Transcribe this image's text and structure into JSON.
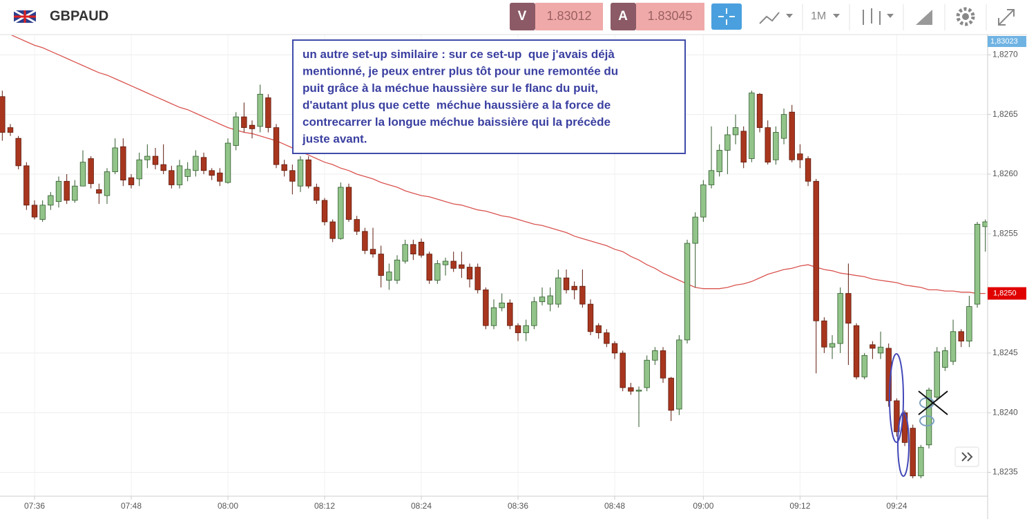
{
  "header": {
    "symbol": "GBPAUD",
    "sell_label": "V",
    "sell_price": "1.83012",
    "buy_label": "A",
    "buy_price": "1.83045",
    "timeframe": "1M"
  },
  "chart_data": {
    "type": "candlestick",
    "categories": [
      null,
      null,
      null,
      null,
      "07:36",
      null,
      null,
      null,
      null,
      null,
      null,
      null,
      null,
      null,
      null,
      null,
      "07:48",
      null,
      null,
      null,
      null,
      null,
      null,
      null,
      null,
      null,
      null,
      null,
      "08:00",
      null,
      null,
      null,
      null,
      null,
      null,
      null,
      null,
      null,
      null,
      null,
      "08:12",
      null,
      null,
      null,
      null,
      null,
      null,
      null,
      null,
      null,
      null,
      null,
      "08:24",
      null,
      null,
      null,
      null,
      null,
      null,
      null,
      null,
      null,
      null,
      null,
      "08:36",
      null,
      null,
      null,
      null,
      null,
      null,
      null,
      null,
      null,
      null,
      null,
      "08:48",
      null,
      null,
      null,
      null,
      null,
      null,
      null,
      null,
      null,
      null,
      "09:00",
      null,
      null,
      null,
      null,
      null,
      null,
      null,
      null,
      null,
      null,
      null,
      "09:12",
      null,
      null,
      null,
      null,
      null,
      null,
      null,
      null,
      null,
      null,
      null,
      "09:24",
      null,
      null,
      null,
      null,
      null,
      null,
      null,
      null,
      null,
      null,
      null
    ],
    "open": [
      1.82665,
      1.82639,
      1.8263,
      1.82607,
      1.82574,
      1.82562,
      1.82574,
      1.82577,
      1.82594,
      1.82578,
      1.8259,
      1.82613,
      1.82587,
      1.82582,
      1.82602,
      1.82623,
      1.82597,
      1.82596,
      1.82612,
      1.82615,
      1.82608,
      1.82603,
      1.82591,
      1.82598,
      1.82603,
      1.82614,
      1.82603,
      1.82601,
      1.82593,
      1.82624,
      1.82648,
      1.82641,
      1.8264,
      1.82664,
      1.82639,
      1.82608,
      1.82603,
      1.8259,
      1.82612,
      1.82589,
      1.82578,
      1.8256,
      1.82546,
      1.82589,
      1.82562,
      1.82552,
      1.82537,
      1.82533,
      1.82511,
      1.82511,
      1.82527,
      1.82541,
      1.82543,
      1.82533,
      1.82511,
      1.82524,
      1.82527,
      1.82524,
      1.82522,
      1.82522,
      1.82503,
      1.82473,
      1.82488,
      1.82492,
      1.82473,
      1.82467,
      1.82473,
      1.82493,
      1.82491,
      1.82491,
      1.82513,
      1.82506,
      1.82506,
      1.82491,
      1.82473,
      1.82467,
      1.82458,
      1.8245,
      1.82421,
      1.82418,
      1.82421,
      1.82444,
      1.82452,
      1.82429,
      1.82403,
      1.82461,
      1.82542,
      1.82564,
      1.82591,
      1.82602,
      1.8262,
      1.82633,
      1.82636,
      1.82613,
      1.82667,
      1.82639,
      1.82612,
      1.8263,
      1.82652,
      1.82617,
      1.82613,
      1.82594,
      1.82477,
      1.82455,
      1.82458,
      1.825,
      1.82473,
      1.8243,
      1.82457,
      1.8245,
      1.82454,
      1.8241,
      1.824,
      1.82387,
      1.82347,
      1.82373,
      1.82413,
      1.82438,
      1.82443,
      1.82468,
      1.8246,
      1.82491,
      1.82556
    ],
    "high": [
      1.8267,
      1.82642,
      1.82632,
      1.8261,
      1.82578,
      1.82578,
      1.82585,
      1.82598,
      1.826,
      1.82595,
      1.8262,
      1.82615,
      1.82592,
      1.82605,
      1.8263,
      1.8263,
      1.826,
      1.82618,
      1.82625,
      1.82622,
      1.82625,
      1.82607,
      1.82612,
      1.8261,
      1.8262,
      1.82618,
      1.82605,
      1.82605,
      1.8263,
      1.82652,
      1.8266,
      1.82645,
      1.82675,
      1.82667,
      1.82642,
      1.82612,
      1.82608,
      1.82615,
      1.82615,
      1.82592,
      1.8258,
      1.82562,
      1.82593,
      1.82592,
      1.82565,
      1.82555,
      1.82555,
      1.8254,
      1.82525,
      1.82532,
      1.82545,
      1.82545,
      1.82546,
      1.82535,
      1.82528,
      1.8253,
      1.82535,
      1.82535,
      1.82525,
      1.82525,
      1.82505,
      1.82495,
      1.825,
      1.82495,
      1.82475,
      1.82478,
      1.82497,
      1.82505,
      1.82505,
      1.8252,
      1.8252,
      1.8251,
      1.8252,
      1.82495,
      1.82475,
      1.8247,
      1.8246,
      1.82452,
      1.82425,
      1.82422,
      1.82448,
      1.82455,
      1.82455,
      1.8243,
      1.82465,
      1.82545,
      1.82568,
      1.82595,
      1.8264,
      1.82625,
      1.8264,
      1.8265,
      1.8264,
      1.8267,
      1.82668,
      1.82645,
      1.8264,
      1.82655,
      1.82658,
      1.82625,
      1.82615,
      1.82596,
      1.8248,
      1.82465,
      1.82505,
      1.82525,
      1.82475,
      1.8245,
      1.8246,
      1.82468,
      1.82458,
      1.82412,
      1.82402,
      1.8239,
      1.82373,
      1.82421,
      1.82455,
      1.82455,
      1.82478,
      1.8247,
      1.82498,
      1.8256,
      1.82562
    ],
    "low": [
      1.82628,
      1.82632,
      1.82604,
      1.8257,
      1.82562,
      1.8256,
      1.8257,
      1.82572,
      1.82575,
      1.82576,
      1.8259,
      1.82588,
      1.82575,
      1.82575,
      1.826,
      1.8259,
      1.82588,
      1.8259,
      1.82605,
      1.82604,
      1.826,
      1.82588,
      1.82588,
      1.82594,
      1.82598,
      1.826,
      1.82595,
      1.8259,
      1.82592,
      1.8262,
      1.82635,
      1.8263,
      1.82635,
      1.82635,
      1.82605,
      1.82598,
      1.82583,
      1.82585,
      1.82588,
      1.82575,
      1.82557,
      1.82543,
      1.82545,
      1.8256,
      1.82549,
      1.82533,
      1.8253,
      1.82505,
      1.82503,
      1.82508,
      1.82525,
      1.82528,
      1.8253,
      1.82508,
      1.82508,
      1.82515,
      1.82518,
      1.82513,
      1.82505,
      1.825,
      1.8247,
      1.8247,
      1.82485,
      1.8247,
      1.8246,
      1.8246,
      1.8247,
      1.8249,
      1.82485,
      1.82488,
      1.825,
      1.82495,
      1.82488,
      1.82465,
      1.82462,
      1.82455,
      1.82445,
      1.82418,
      1.82415,
      1.82388,
      1.82418,
      1.8244,
      1.82425,
      1.82393,
      1.82398,
      1.82458,
      1.82505,
      1.8256,
      1.82588,
      1.82598,
      1.826,
      1.82625,
      1.82605,
      1.8261,
      1.82635,
      1.82608,
      1.82608,
      1.82625,
      1.8261,
      1.82605,
      1.8259,
      1.82433,
      1.8245,
      1.82445,
      1.8245,
      1.8244,
      1.82428,
      1.82428,
      1.82445,
      1.82445,
      1.82405,
      1.8238,
      1.82372,
      1.82345,
      1.82345,
      1.8237,
      1.8241,
      1.82435,
      1.8244,
      1.82455,
      1.82455,
      1.82488,
      1.82535
    ],
    "close": [
      1.82635,
      1.82635,
      1.82607,
      1.82574,
      1.82564,
      1.82574,
      1.82582,
      1.82594,
      1.82578,
      1.8259,
      1.8261,
      1.82592,
      1.82584,
      1.82602,
      1.82622,
      1.82595,
      1.82591,
      1.82612,
      1.82615,
      1.82608,
      1.82603,
      1.82591,
      1.82607,
      1.82604,
      1.82615,
      1.82603,
      1.82599,
      1.82594,
      1.82626,
      1.82648,
      1.82639,
      1.82638,
      1.82667,
      1.82639,
      1.82608,
      1.82603,
      1.82594,
      1.82612,
      1.8259,
      1.82578,
      1.8256,
      1.82546,
      1.82589,
      1.82562,
      1.82552,
      1.82536,
      1.82533,
      1.82515,
      1.82518,
      1.82528,
      1.82541,
      1.82533,
      1.82532,
      1.82511,
      1.82525,
      1.82527,
      1.82521,
      1.82521,
      1.82512,
      1.82503,
      1.82473,
      1.82488,
      1.82492,
      1.82473,
      1.82467,
      1.82473,
      1.82493,
      1.82497,
      1.82498,
      1.82513,
      1.82503,
      1.82503,
      1.82491,
      1.82468,
      1.82467,
      1.82458,
      1.8245,
      1.82421,
      1.82418,
      1.82419,
      1.82444,
      1.82452,
      1.82429,
      1.82402,
      1.82461,
      1.82542,
      1.82564,
      1.82591,
      1.82603,
      1.8262,
      1.82633,
      1.82639,
      1.8261,
      1.82668,
      1.82639,
      1.8261,
      1.82635,
      1.8265,
      1.82612,
      1.82612,
      1.82594,
      1.82477,
      1.82455,
      1.82458,
      1.825,
      1.82475,
      1.8243,
      1.82448,
      1.82454,
      1.82455,
      1.8241,
      1.82384,
      1.82375,
      1.82347,
      1.82371,
      1.82419,
      1.82451,
      1.82452,
      1.82468,
      1.8246,
      1.82489,
      1.82558,
      1.8256
    ],
    "up_color": "#92c48a",
    "down_color": "#a8361e",
    "moving_average": {
      "color": "#d9534f",
      "values": [
        1.8272,
        1.82717,
        1.82714,
        1.82711,
        1.82708,
        1.82706,
        1.82703,
        1.827,
        1.82697,
        1.82694,
        1.82691,
        1.82688,
        1.82685,
        1.82683,
        1.8268,
        1.82677,
        1.82674,
        1.82671,
        1.82668,
        1.82665,
        1.82662,
        1.82659,
        1.82656,
        1.82654,
        1.82651,
        1.82648,
        1.82645,
        1.82642,
        1.82639,
        1.82637,
        1.82635,
        1.82634,
        1.82632,
        1.8263,
        1.82628,
        1.82625,
        1.82622,
        1.82619,
        1.82616,
        1.82613,
        1.8261,
        1.82608,
        1.82605,
        1.82603,
        1.826,
        1.82598,
        1.82596,
        1.82593,
        1.82591,
        1.82589,
        1.82586,
        1.82584,
        1.82582,
        1.82581,
        1.82579,
        1.82577,
        1.82575,
        1.82574,
        1.82572,
        1.8257,
        1.82569,
        1.82567,
        1.82565,
        1.82564,
        1.82562,
        1.8256,
        1.82558,
        1.82557,
        1.82555,
        1.82553,
        1.82551,
        1.82548,
        1.82546,
        1.82544,
        1.82542,
        1.8254,
        1.82537,
        1.82535,
        1.82531,
        1.82528,
        1.82524,
        1.82521,
        1.82517,
        1.82514,
        1.82511,
        1.82508,
        1.82505,
        1.82504,
        1.82504,
        1.82504,
        1.82505,
        1.82507,
        1.82508,
        1.8251,
        1.82513,
        1.82516,
        1.82518,
        1.8252,
        1.82521,
        1.82523,
        1.82524,
        1.82522,
        1.8252,
        1.82519,
        1.82517,
        1.82516,
        1.82515,
        1.82514,
        1.82512,
        1.82511,
        1.8251,
        1.82509,
        1.82507,
        1.82506,
        1.82505,
        1.82503,
        1.82503,
        1.82502,
        1.82502,
        1.82501,
        1.82501,
        1.825,
        1.825
      ]
    },
    "ylim": [
      1.8233,
      1.82717
    ],
    "yticks": [
      {
        "value": 1.8235,
        "label": "1,8235"
      },
      {
        "value": 1.824,
        "label": "1,8240"
      },
      {
        "value": 1.8245,
        "label": "1,8245"
      },
      {
        "value": 1.825,
        "label": "1,8250"
      },
      {
        "value": 1.8255,
        "label": "1,8255"
      },
      {
        "value": 1.826,
        "label": "1,8260"
      },
      {
        "value": 1.8265,
        "label": "1,8265"
      },
      {
        "value": 1.827,
        "label": "1,8270"
      }
    ],
    "grid": true,
    "last_price_tag": {
      "value": 1.83023,
      "label": "1,83023"
    },
    "ma_tag": {
      "value": 1.825,
      "label": "1,8250"
    },
    "annotation": [
      "un autre set-up similaire : sur ce set-up  que j'avais déjà",
      "mentionné, je peux entrer plus tôt pour une remontée du",
      "puit grâce à la méchue haussière sur le flanc du puit,",
      "d'autant plus que cette  méchue haussière a la force de",
      "contrecarrer la longue méchue baissière qui la précède",
      "juste avant."
    ]
  }
}
